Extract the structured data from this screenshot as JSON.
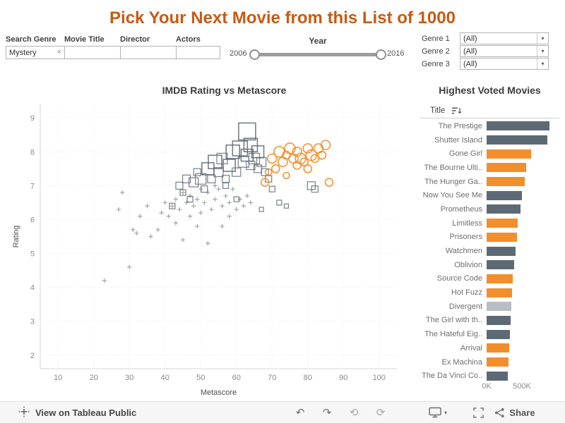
{
  "title": "Pick Your Next Movie from this List of 1000",
  "colors": {
    "title": "#c85a13",
    "orange": "#f28e2b",
    "slate": "#5d6a75",
    "light_gray": "#b8bec3"
  },
  "filters": {
    "search_genre": {
      "label": "Search Genre",
      "value": "Mystery"
    },
    "movie_title": {
      "label": "Movie  Title",
      "value": ""
    },
    "director": {
      "label": "Director",
      "value": ""
    },
    "actors": {
      "label": "Actors",
      "value": ""
    },
    "year": {
      "label": "Year",
      "start": "2006",
      "end": "2016"
    },
    "genre_selects": [
      {
        "label": "Genre  1",
        "value": "(All)"
      },
      {
        "label": "Genre  2",
        "value": "(All)"
      },
      {
        "label": "Genre  3",
        "value": "(All)"
      }
    ]
  },
  "chart_data": [
    {
      "type": "scatter",
      "title": "IMDB Rating vs Metascore",
      "xlabel": "Metascore",
      "ylabel": "Rating",
      "xlim": [
        5,
        105
      ],
      "ylim": [
        1.6,
        9.4
      ],
      "xticks": [
        10,
        20,
        30,
        40,
        50,
        60,
        70,
        80,
        90,
        100
      ],
      "yticks": [
        2,
        3,
        4,
        5,
        6,
        7,
        8,
        9
      ],
      "grid": "dotted",
      "series": [
        {
          "name": "other-genres",
          "marker": "plus",
          "color": "#9b9b9b",
          "points": [
            [
              23,
              4.2
            ],
            [
              27,
              6.3
            ],
            [
              28,
              6.8
            ],
            [
              30,
              4.6
            ],
            [
              31,
              5.7
            ],
            [
              32,
              5.6
            ],
            [
              33,
              6.1
            ],
            [
              35,
              6.4
            ],
            [
              36,
              5.5
            ],
            [
              38,
              5.7
            ],
            [
              39,
              6.2
            ],
            [
              40,
              6.5
            ],
            [
              41,
              6.1
            ],
            [
              42,
              6.4
            ],
            [
              43,
              5.9
            ],
            [
              43,
              6.6
            ],
            [
              44,
              6.3
            ],
            [
              45,
              5.4
            ],
            [
              45,
              6.8
            ],
            [
              46,
              6.5
            ],
            [
              47,
              6.1
            ],
            [
              47,
              6.7
            ],
            [
              48,
              6.4
            ],
            [
              49,
              5.8
            ],
            [
              49,
              6.6
            ],
            [
              50,
              6.9
            ],
            [
              50,
              6.2
            ],
            [
              51,
              6.5
            ],
            [
              52,
              5.3
            ],
            [
              52,
              6.8
            ],
            [
              53,
              6.3
            ],
            [
              54,
              7.0
            ],
            [
              54,
              6.6
            ],
            [
              55,
              6.9
            ],
            [
              56,
              6.4
            ],
            [
              56,
              5.8
            ],
            [
              57,
              6.7
            ],
            [
              58,
              6.1
            ],
            [
              58,
              6.5
            ],
            [
              59,
              6.9
            ],
            [
              60,
              6.3
            ],
            [
              61,
              6.6
            ],
            [
              62,
              6.4
            ],
            [
              63,
              6.7
            ],
            [
              64,
              6.5
            ]
          ]
        },
        {
          "name": "mystery-squares",
          "marker": "square-open",
          "color": "#5d6a75",
          "points": [
            [
              42,
              6.4,
              8
            ],
            [
              44,
              7.0,
              10
            ],
            [
              45,
              6.8,
              8
            ],
            [
              46,
              7.2,
              11
            ],
            [
              47,
              6.6,
              8
            ],
            [
              48,
              7.1,
              13
            ],
            [
              49,
              7.4,
              10
            ],
            [
              50,
              7.2,
              15
            ],
            [
              51,
              6.9,
              9
            ],
            [
              52,
              7.5,
              17
            ],
            [
              53,
              7.2,
              11
            ],
            [
              54,
              7.7,
              19
            ],
            [
              55,
              7.4,
              13
            ],
            [
              56,
              7.8,
              15
            ],
            [
              57,
              7.2,
              10
            ],
            [
              57,
              7.0,
              8
            ],
            [
              58,
              7.6,
              17
            ],
            [
              59,
              8.0,
              19
            ],
            [
              60,
              7.4,
              12
            ],
            [
              60,
              6.6,
              7
            ],
            [
              61,
              8.1,
              21
            ],
            [
              62,
              7.7,
              15
            ],
            [
              63,
              8.6,
              24
            ],
            [
              63,
              7.9,
              17
            ],
            [
              64,
              8.2,
              19
            ],
            [
              64,
              7.6,
              12
            ],
            [
              65,
              7.8,
              15
            ],
            [
              66,
              8.0,
              17
            ],
            [
              66,
              7.5,
              11
            ],
            [
              67,
              7.7,
              13
            ],
            [
              67,
              6.3,
              6
            ],
            [
              68,
              7.4,
              10
            ],
            [
              69,
              7.2,
              9
            ],
            [
              70,
              6.9,
              8
            ],
            [
              72,
              6.5,
              7
            ],
            [
              74,
              6.4,
              6
            ],
            [
              81,
              7.0,
              11
            ],
            [
              82,
              6.9,
              9
            ]
          ]
        },
        {
          "name": "highlighted-circles",
          "marker": "circle-open",
          "color": "#f28e2b",
          "points": [
            [
              68,
              7.1,
              11
            ],
            [
              69,
              7.4,
              9
            ],
            [
              70,
              7.8,
              13
            ],
            [
              71,
              7.5,
              11
            ],
            [
              72,
              8.0,
              15
            ],
            [
              73,
              7.7,
              13
            ],
            [
              74,
              7.9,
              11
            ],
            [
              74,
              7.3,
              9
            ],
            [
              75,
              8.1,
              15
            ],
            [
              76,
              7.8,
              13
            ],
            [
              77,
              7.6,
              11
            ],
            [
              77,
              8.0,
              13
            ],
            [
              78,
              7.8,
              15
            ],
            [
              79,
              7.7,
              11
            ],
            [
              80,
              8.1,
              13
            ],
            [
              80,
              7.5,
              11
            ],
            [
              81,
              7.9,
              15
            ],
            [
              82,
              7.8,
              11
            ],
            [
              83,
              8.1,
              13
            ],
            [
              84,
              7.9,
              11
            ],
            [
              85,
              8.2,
              13
            ],
            [
              86,
              7.1,
              11
            ]
          ]
        }
      ]
    },
    {
      "type": "bar",
      "orientation": "horizontal",
      "title": "Highest Voted Movies",
      "column_header": "Title",
      "xlim": [
        0,
        1000
      ],
      "tick_labels": [
        "0K",
        "500K"
      ],
      "tick_values": [
        0,
        500
      ],
      "value_unit": "K votes",
      "categories": [
        "The Prestige",
        "Shutter Island",
        "Gone Girl",
        "The Bourne Ulti..",
        "The Hunger Ga..",
        "Now You See Me",
        "Prometheus",
        "Limitless",
        "Prisoners",
        "Watchmen",
        "Oblivion",
        "Source Code",
        "Hot Fuzz",
        "Divergent",
        "The Girl with th..",
        "The Hateful Eig..",
        "Arrival",
        "Ex Machina",
        "The Da Vinci Co.."
      ],
      "values": [
        890,
        860,
        625,
        560,
        540,
        500,
        480,
        440,
        425,
        410,
        385,
        365,
        355,
        345,
        335,
        325,
        315,
        308,
        300
      ],
      "colors": [
        "#5d6a75",
        "#5d6a75",
        "#f28e2b",
        "#f28e2b",
        "#f28e2b",
        "#5d6a75",
        "#5d6a75",
        "#f28e2b",
        "#f28e2b",
        "#5d6a75",
        "#5d6a75",
        "#f28e2b",
        "#f28e2b",
        "#b8bec3",
        "#5d6a75",
        "#5d6a75",
        "#f28e2b",
        "#f28e2b",
        "#5d6a75"
      ]
    }
  ],
  "toolbar": {
    "attribution": "View on Tableau Public",
    "share_label": "Share"
  }
}
